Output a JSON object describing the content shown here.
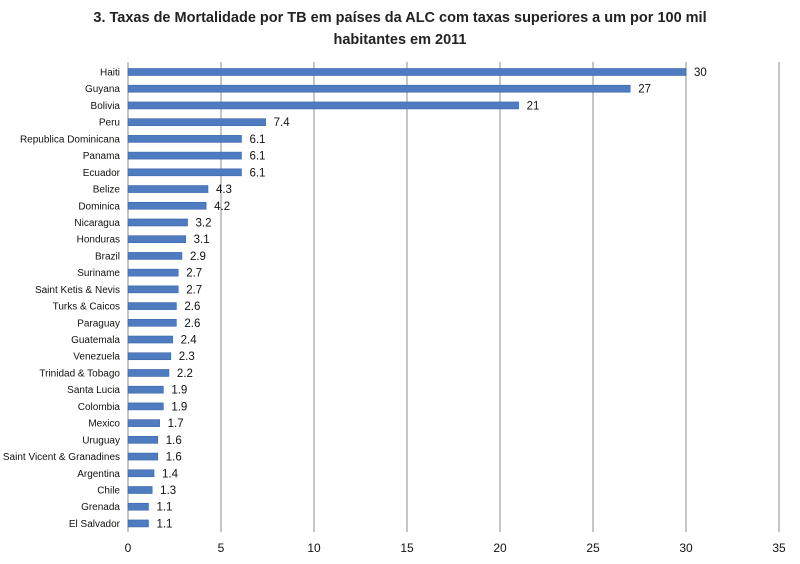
{
  "chart_data": {
    "type": "bar",
    "orientation": "horizontal",
    "title_lines": [
      "3. Taxas de Mortalidade por TB em países da ALC com taxas superiores a um por 100 mil",
      "habitantes em 2011"
    ],
    "categories": [
      "Haiti",
      "Guyana",
      "Bolivia",
      "Peru",
      "Republica Dominicana",
      "Panama",
      "Ecuador",
      "Belize",
      "Dominica",
      "Nicaragua",
      "Honduras",
      "Brazil",
      "Suriname",
      "Saint Ketis & Nevis",
      "Turks & Caicos",
      "Paraguay",
      "Guatemala",
      "Venezuela",
      "Trinidad & Tobago",
      "Santa Lucia",
      "Colombia",
      "Mexico",
      "Uruguay",
      "Saint Vicent & Granadines",
      "Argentina",
      "Chile",
      "Grenada",
      "El Salvador"
    ],
    "values": [
      30,
      27,
      21,
      7.4,
      6.1,
      6.1,
      6.1,
      4.3,
      4.2,
      3.2,
      3.1,
      2.9,
      2.7,
      2.7,
      2.6,
      2.6,
      2.4,
      2.3,
      2.2,
      1.9,
      1.9,
      1.7,
      1.6,
      1.6,
      1.4,
      1.3,
      1.1,
      1.1
    ],
    "value_labels": [
      "30",
      "27",
      "21",
      "7.4",
      "6.1",
      "6.1",
      "6.1",
      "4.3",
      "4.2",
      "3.2",
      "3.1",
      "2.9",
      "2.7",
      "2.7",
      "2.6",
      "2.6",
      "2.4",
      "2.3",
      "2.2",
      "1.9",
      "1.9",
      "1.7",
      "1.6",
      "1.6",
      "1.4",
      "1.3",
      "1.1",
      "1.1"
    ],
    "xlim": [
      0,
      35
    ],
    "xticks": [
      0,
      5,
      10,
      15,
      20,
      25,
      30,
      35
    ],
    "xlabel": "",
    "ylabel": "",
    "grid": "vertical",
    "legend": "none",
    "colors": {
      "bar": "#4F7BC0",
      "bar_edge": "#3A65A8",
      "grid": "#8c8c8c",
      "text": "#111111"
    }
  }
}
